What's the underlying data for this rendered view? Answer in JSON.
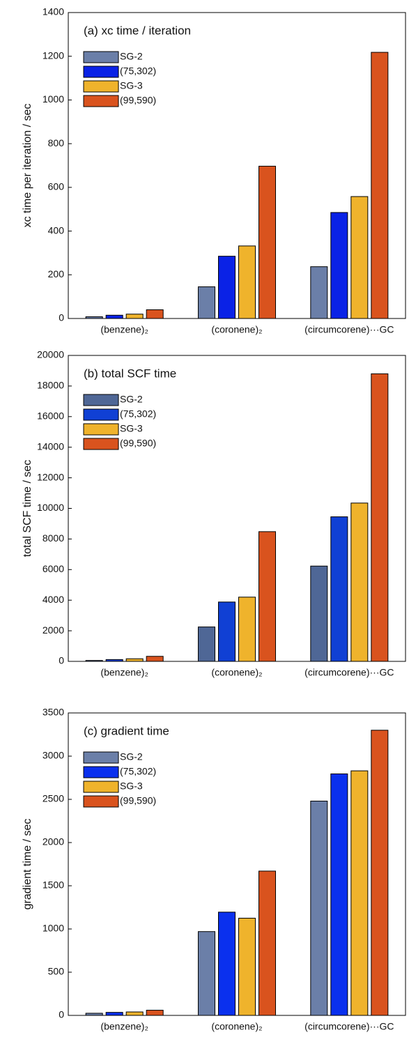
{
  "chart_data": [
    {
      "type": "bar",
      "title": "(a) xc time / iteration",
      "y_label": "xc time per iteration / sec",
      "categories": [
        "(benzene)₂",
        "(coronene)₂",
        "(circumcorene)···GC"
      ],
      "series": [
        {
          "name": "SG-2",
          "color": "#6b7fa8",
          "values": [
            8,
            145,
            237
          ]
        },
        {
          "name": "(75,302)",
          "color": "#0a22e6",
          "values": [
            15,
            285,
            485
          ]
        },
        {
          "name": "SG-3",
          "color": "#efb32c",
          "values": [
            20,
            332,
            558
          ]
        },
        {
          "name": "(99,590)",
          "color": "#d9531e",
          "values": [
            40,
            697,
            1218
          ]
        }
      ],
      "ylim": [
        0,
        1400
      ],
      "yticks": [
        0,
        200,
        400,
        600,
        800,
        1000,
        1200,
        1400
      ]
    },
    {
      "type": "bar",
      "title": "(b) total SCF time",
      "y_label": "total SCF time / sec",
      "categories": [
        "(benzene)₂",
        "(coronene)₂",
        "(circumcorene)···GC"
      ],
      "series": [
        {
          "name": "SG-2",
          "color": "#4f6796",
          "values": [
            60,
            2250,
            6230
          ]
        },
        {
          "name": "(75,302)",
          "color": "#1040d4",
          "values": [
            120,
            3880,
            9450
          ]
        },
        {
          "name": "SG-3",
          "color": "#efb32c",
          "values": [
            170,
            4200,
            10350
          ]
        },
        {
          "name": "(99,590)",
          "color": "#d9531e",
          "values": [
            330,
            8480,
            18800
          ]
        }
      ],
      "ylim": [
        0,
        20000
      ],
      "yticks": [
        0,
        2000,
        4000,
        6000,
        8000,
        10000,
        12000,
        14000,
        16000,
        18000,
        20000
      ]
    },
    {
      "type": "bar",
      "title": "(c) gradient time",
      "y_label": "gradient time / sec",
      "categories": [
        "(benzene)₂",
        "(coronene)₂",
        "(circumcorene)···GC"
      ],
      "series": [
        {
          "name": "SG-2",
          "color": "#6b7fa8",
          "values": [
            25,
            970,
            2480
          ]
        },
        {
          "name": "(75,302)",
          "color": "#0a30ee",
          "values": [
            35,
            1195,
            2795
          ]
        },
        {
          "name": "SG-3",
          "color": "#efb32c",
          "values": [
            40,
            1125,
            2830
          ]
        },
        {
          "name": "(99,590)",
          "color": "#d9531e",
          "values": [
            60,
            1670,
            3300
          ]
        }
      ],
      "ylim": [
        0,
        3500
      ],
      "yticks": [
        0,
        500,
        1000,
        1500,
        2000,
        2500,
        3000,
        3500
      ]
    }
  ]
}
